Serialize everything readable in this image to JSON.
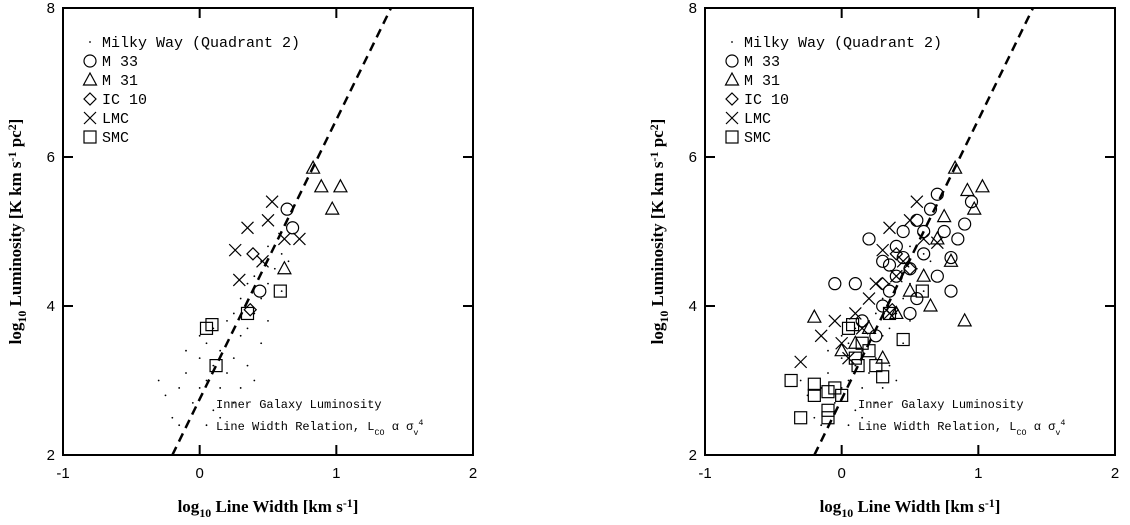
{
  "chart_data": [
    {
      "type": "scatter",
      "xlabel": [
        "log",
        "10",
        " Line Width [km s",
        "-1",
        "]"
      ],
      "ylabel": [
        "log",
        "10",
        " Luminosity [K km s",
        "-1",
        " pc",
        "2",
        "]"
      ],
      "annotation": [
        [
          "Inner Galaxy Luminosity"
        ],
        [
          "Line Width Relation, L",
          "CO",
          " α σ",
          "v",
          "4"
        ]
      ],
      "xlim": [
        -1,
        2
      ],
      "ylim": [
        2,
        8
      ],
      "xticks": [
        -1,
        0,
        1,
        2
      ],
      "yticks": [
        2,
        4,
        6,
        8
      ],
      "fit_line": {
        "x": [
          -0.2,
          1.4
        ],
        "y": [
          2,
          8
        ]
      },
      "series": [
        {
          "name": "Milky Way (Quadrant 2)",
          "marker": "dot",
          "x": [
            -0.2,
            -0.15,
            -0.1,
            -0.05,
            0,
            0,
            0.05,
            0.05,
            0.1,
            0.1,
            0.1,
            0.15,
            0.15,
            0.2,
            0.2,
            0.2,
            0.25,
            0.25,
            0.3,
            0.3,
            0.35,
            0.35,
            0.4,
            0.4,
            0.45,
            0.45,
            0.5,
            0.5,
            0.55,
            0.6,
            0.6,
            -0.25,
            -0.3,
            -0.1,
            0,
            0.05,
            0.15,
            0.3,
            0.35,
            0.45,
            0.5,
            0.65,
            -0.15,
            0.25,
            0.4
          ],
          "values": [
            2.5,
            2.9,
            3.1,
            2.7,
            3.3,
            2.9,
            3.5,
            3.0,
            3.7,
            2.6,
            3.2,
            3.4,
            2.9,
            3.8,
            3.1,
            3.5,
            3.9,
            3.3,
            4.1,
            3.6,
            4.3,
            3.7,
            4.4,
            3.9,
            4.6,
            4.1,
            4.8,
            4.3,
            4.5,
            4.7,
            4.2,
            2.8,
            3.0,
            3.4,
            3.6,
            2.4,
            2.5,
            2.9,
            3.2,
            3.5,
            3.8,
            4.6,
            2.4,
            2.7,
            3.0
          ]
        },
        {
          "name": "M 33",
          "marker": "circle",
          "x": [
            0.64,
            0.68,
            0.44
          ],
          "values": [
            5.3,
            5.05,
            4.2
          ]
        },
        {
          "name": "M 31",
          "marker": "triangle",
          "x": [
            0.83,
            0.89,
            1.03,
            0.97,
            0.62
          ],
          "values": [
            5.85,
            5.6,
            5.6,
            5.3,
            4.5
          ]
        },
        {
          "name": "IC 10",
          "marker": "diamond",
          "x": [
            0.39,
            0.37
          ],
          "values": [
            4.7,
            3.95
          ]
        },
        {
          "name": "LMC",
          "marker": "x",
          "x": [
            0.53,
            0.5,
            0.35,
            0.73,
            0.29,
            0.46,
            0.62,
            0.26
          ],
          "values": [
            5.4,
            5.15,
            5.05,
            4.9,
            4.35,
            4.6,
            4.9,
            4.75
          ]
        },
        {
          "name": "SMC",
          "marker": "square",
          "x": [
            0.05,
            0.09,
            0.12,
            0.35,
            0.59
          ],
          "values": [
            3.7,
            3.75,
            3.2,
            3.9,
            4.2
          ]
        }
      ]
    },
    {
      "type": "scatter",
      "xlabel": [
        "log",
        "10",
        " Line Width [km s",
        "-1",
        "]"
      ],
      "ylabel": [
        "log",
        "10",
        " Luminosity [K km s",
        "-1",
        " pc",
        "2",
        "]"
      ],
      "annotation": [
        [
          "Inner Galaxy Luminosity"
        ],
        [
          "Line Width Relation, L",
          "CO",
          " α σ",
          "v",
          "4"
        ]
      ],
      "xlim": [
        -1,
        2
      ],
      "ylim": [
        2,
        8
      ],
      "xticks": [
        -1,
        0,
        1,
        2
      ],
      "yticks": [
        2,
        4,
        6,
        8
      ],
      "fit_line": {
        "x": [
          -0.2,
          1.4
        ],
        "y": [
          2,
          8
        ]
      },
      "series": [
        {
          "name": "Milky Way (Quadrant 2)",
          "marker": "dot",
          "x": [
            -0.2,
            -0.15,
            -0.1,
            -0.05,
            0,
            0,
            0.05,
            0.05,
            0.1,
            0.1,
            0.1,
            0.15,
            0.15,
            0.2,
            0.2,
            0.2,
            0.25,
            0.25,
            0.3,
            0.3,
            0.35,
            0.35,
            0.4,
            0.4,
            0.45,
            0.45,
            0.5,
            0.5,
            0.55,
            0.6,
            0.6,
            -0.25,
            -0.3,
            -0.1,
            0,
            0.05,
            0.15,
            0.3,
            0.35,
            0.45,
            0.5,
            0.65,
            -0.15,
            0.25,
            0.4
          ],
          "values": [
            2.5,
            2.9,
            3.1,
            2.7,
            3.3,
            2.9,
            3.5,
            3.0,
            3.7,
            2.6,
            3.2,
            3.4,
            2.9,
            3.8,
            3.1,
            3.5,
            3.9,
            3.3,
            4.1,
            3.6,
            4.3,
            3.7,
            4.4,
            3.9,
            4.6,
            4.1,
            4.8,
            4.3,
            4.5,
            4.7,
            4.2,
            2.8,
            3.0,
            3.4,
            3.6,
            2.4,
            2.5,
            2.9,
            3.2,
            3.5,
            3.8,
            4.6,
            2.4,
            2.7,
            3.0
          ]
        },
        {
          "name": "M 33",
          "marker": "circle",
          "x": [
            0.1,
            0.2,
            0.3,
            0.35,
            0.4,
            0.45,
            0.5,
            0.55,
            0.6,
            0.65,
            0.7,
            0.75,
            0.8,
            0.85,
            0.9,
            0.95,
            0.5,
            0.3,
            0.25,
            0.4,
            0.55,
            0.6,
            0.7,
            -0.05,
            0.15,
            0.45,
            0.35,
            0.8
          ],
          "values": [
            4.3,
            4.9,
            4.6,
            4.2,
            4.8,
            5.0,
            4.5,
            5.15,
            4.7,
            5.3,
            4.4,
            5.0,
            4.2,
            4.9,
            5.1,
            5.4,
            3.9,
            4.0,
            3.6,
            4.4,
            4.1,
            5.0,
            5.5,
            4.3,
            3.8,
            4.65,
            4.55,
            4.65
          ]
        },
        {
          "name": "M 31",
          "marker": "triangle",
          "x": [
            0.83,
            0.92,
            1.03,
            0.97,
            0.9,
            -0.2,
            0,
            0.3,
            0.5,
            0.6,
            0.7,
            0.8,
            0.2,
            0.1,
            0.4,
            0.75,
            0.65
          ],
          "values": [
            5.85,
            5.55,
            5.6,
            5.3,
            3.8,
            3.85,
            3.4,
            3.3,
            4.2,
            4.4,
            4.9,
            4.6,
            3.7,
            3.5,
            3.9,
            5.2,
            4.0
          ]
        },
        {
          "name": "IC 10",
          "marker": "diamond",
          "x": [
            0.4,
            0.37,
            0.3,
            0.5
          ],
          "values": [
            4.7,
            3.95,
            4.3,
            4.5
          ]
        },
        {
          "name": "LMC",
          "marker": "x",
          "x": [
            -0.3,
            -0.15,
            -0.05,
            0,
            0.1,
            0.2,
            0.25,
            0.3,
            0.35,
            0.4,
            0.45,
            0.5,
            0.55,
            0.6,
            0.7,
            0.15,
            0.05,
            0.35
          ],
          "values": [
            3.25,
            3.6,
            3.8,
            3.5,
            3.9,
            4.1,
            4.3,
            4.75,
            5.05,
            4.4,
            4.6,
            5.15,
            5.4,
            4.9,
            4.85,
            3.7,
            3.3,
            3.9
          ]
        },
        {
          "name": "SMC",
          "marker": "square",
          "x": [
            -0.37,
            -0.3,
            -0.2,
            -0.2,
            -0.1,
            -0.1,
            -0.05,
            0,
            0.05,
            0.08,
            0.12,
            0.1,
            0.2,
            0.25,
            0.3,
            0.35,
            0.45,
            0.59,
            0.15,
            -0.1
          ],
          "values": [
            3.0,
            2.5,
            2.8,
            2.95,
            2.6,
            2.85,
            2.9,
            2.8,
            3.7,
            3.75,
            3.2,
            3.3,
            3.4,
            3.2,
            3.05,
            3.9,
            3.55,
            4.2,
            3.5,
            2.5
          ]
        }
      ]
    }
  ]
}
